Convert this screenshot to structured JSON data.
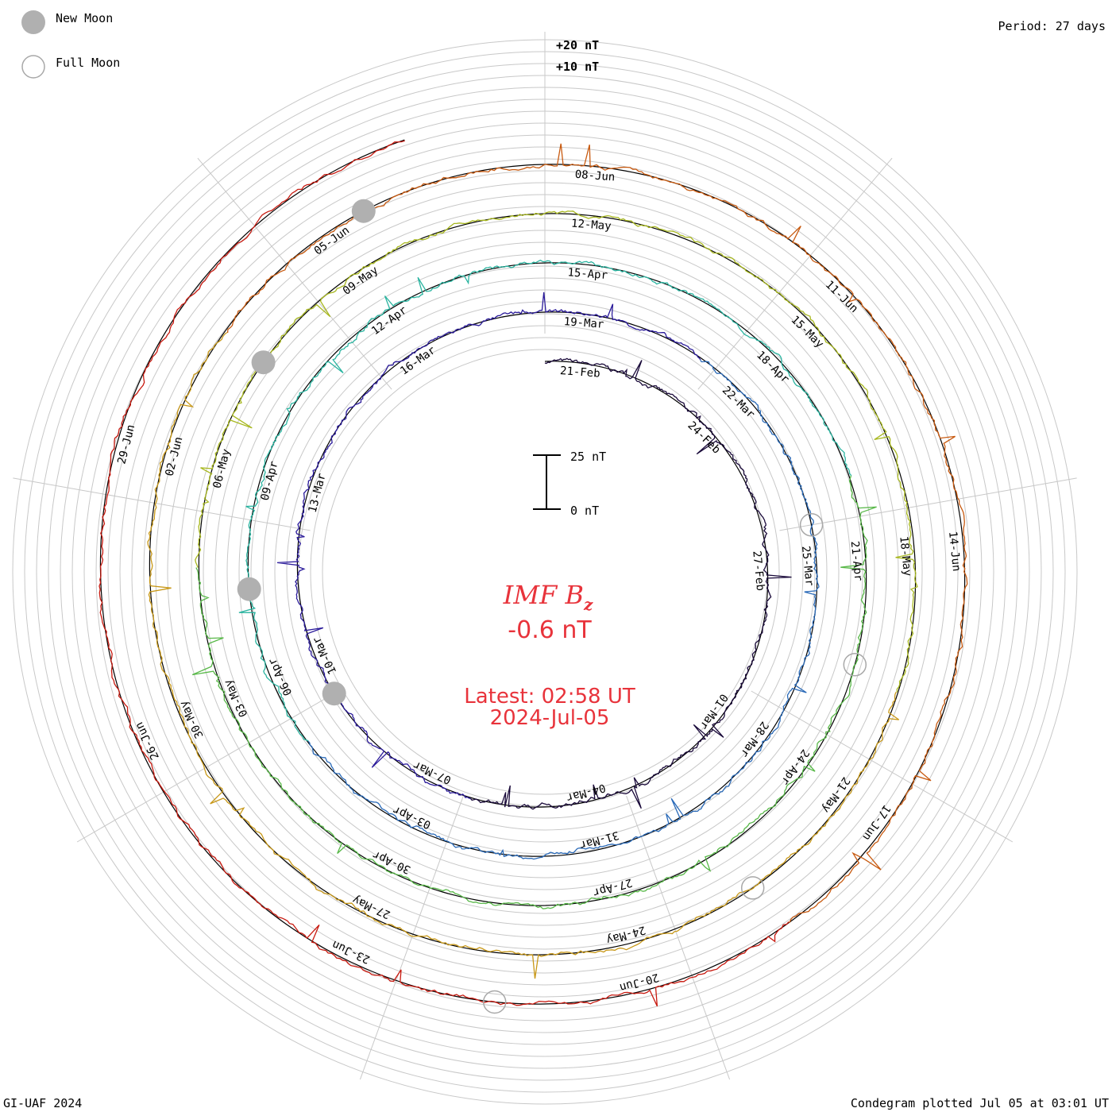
{
  "header": {
    "new_moon_label": "New Moon",
    "full_moon_label": "Full Moon",
    "period": "Period: 27 days"
  },
  "footer": {
    "left": "GI-UAF 2024",
    "right": "Condegram plotted Jul 05 at 03:01 UT"
  },
  "center": {
    "title_main": "IMF B",
    "title_sub": "z",
    "value": "-0.6 nT",
    "latest": "Latest: 02:58 UT",
    "date": "2024-Jul-05"
  },
  "scale_bar": {
    "top_label": "25 nT",
    "bottom_label": "0 nT"
  },
  "ring_scale": {
    "plus20": "+20 nT",
    "plus10": "+10 nT"
  },
  "colors": {
    "text_red": "#e8333b",
    "grid": "#c8c8c8",
    "moon_new": "#b0b0b0",
    "moon_full": "#a8a8a8",
    "series": [
      "#1a0a3a",
      "#2a1a9a",
      "#2a6ab8",
      "#2ab4a0",
      "#58b848",
      "#a8b820",
      "#c89818",
      "#c85a10",
      "#c81a10"
    ]
  },
  "chart_data": {
    "type": "line",
    "period_days": 27,
    "units": "nT",
    "radial_scale_labels": [
      "+20 nT",
      "+10 nT"
    ],
    "latest_value": -0.6,
    "latest_time": "2024-07-05T02:58",
    "date_labels": [
      {
        "turn": 0,
        "labels": [
          "21-Feb",
          "24-Feb",
          "27-Feb",
          "01-Mar",
          "04-Mar",
          "07-Mar",
          "10-Mar",
          "13-Mar",
          "16-Mar"
        ]
      },
      {
        "turn": 1,
        "labels": [
          "19-Mar",
          "22-Mar",
          "25-Mar",
          "28-Mar",
          "31-Mar",
          "03-Apr",
          "06-Apr",
          "09-Apr",
          "12-Apr"
        ]
      },
      {
        "turn": 2,
        "labels": [
          "15-Apr",
          "18-Apr",
          "21-Apr",
          "24-Apr",
          "27-Apr",
          "30-Apr",
          "03-May",
          "06-May",
          "09-May"
        ]
      },
      {
        "turn": 3,
        "labels": [
          "12-May",
          "15-May",
          "18-May",
          "21-May",
          "24-May",
          "27-May",
          "30-May",
          "02-Jun",
          "05-Jun"
        ]
      },
      {
        "turn": 4,
        "labels": [
          "08-Jun",
          "11-Jun",
          "14-Jun",
          "17-Jun",
          "20-Jun",
          "23-Jun",
          "26-Jun",
          "29-Jun"
        ]
      }
    ],
    "new_moons": [
      "2024-03-10",
      "2024-04-08",
      "2024-05-08",
      "2024-06-06"
    ],
    "full_moons": [
      "2024-03-25",
      "2024-04-23",
      "2024-05-23",
      "2024-06-22"
    ]
  }
}
